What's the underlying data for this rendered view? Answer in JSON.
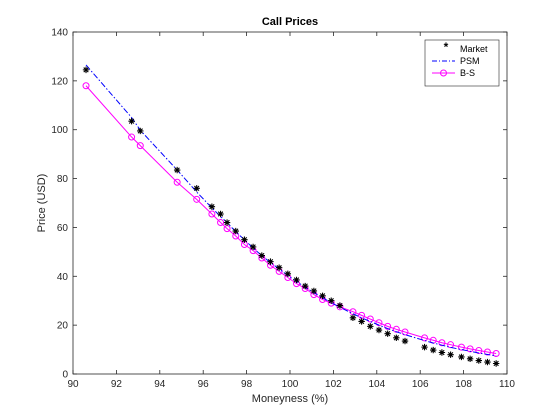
{
  "chart_data": {
    "type": "line",
    "title": "Call Prices",
    "xlabel": "Moneyness (%)",
    "ylabel": "Price (USD)",
    "xlim": [
      90,
      110
    ],
    "ylim": [
      0,
      140
    ],
    "xticks": [
      90,
      92,
      94,
      96,
      98,
      100,
      102,
      104,
      106,
      108,
      110
    ],
    "yticks": [
      0,
      20,
      40,
      60,
      80,
      100,
      120,
      140
    ],
    "grid": false,
    "legend_position": "top-right",
    "colors": {
      "market": "#000000",
      "psm": "#0000ff",
      "bs": "#ff00ff"
    },
    "series": [
      {
        "name": "Market",
        "style": "asterisk-markers",
        "x": [
          90.6,
          92.7,
          93.1,
          94.8,
          95.7,
          96.4,
          96.8,
          97.1,
          97.5,
          97.9,
          98.3,
          98.7,
          99.1,
          99.5,
          99.9,
          100.3,
          100.7,
          101.1,
          101.5,
          101.9,
          102.3,
          102.9,
          103.3,
          103.7,
          104.1,
          104.5,
          104.9,
          105.3,
          106.2,
          106.6,
          107.0,
          107.4,
          107.9,
          108.3,
          108.7,
          109.1,
          109.5
        ],
        "y": [
          124.5,
          103.5,
          99.5,
          83.5,
          76.0,
          68.5,
          65.5,
          62.0,
          58.5,
          55.0,
          52.0,
          48.5,
          46.0,
          43.5,
          41.0,
          38.5,
          36.0,
          34.0,
          32.0,
          30.0,
          28.0,
          23.0,
          21.5,
          19.5,
          18.0,
          16.5,
          14.8,
          13.5,
          11.0,
          9.8,
          8.8,
          7.9,
          7.0,
          6.2,
          5.5,
          4.9,
          4.3
        ]
      },
      {
        "name": "PSM",
        "style": "dash-dot",
        "x": [
          90.6,
          92.7,
          93.1,
          94.8,
          95.7,
          96.4,
          96.8,
          97.1,
          97.5,
          97.9,
          98.3,
          98.7,
          99.1,
          99.5,
          99.9,
          100.3,
          100.7,
          101.1,
          101.5,
          101.9,
          102.3,
          102.9,
          103.3,
          103.7,
          104.1,
          104.5,
          104.9,
          105.3,
          106.2,
          106.6,
          107.0,
          107.4,
          107.9,
          108.3,
          108.7,
          109.1,
          109.5
        ],
        "y": [
          126.5,
          105.0,
          99.8,
          83.5,
          74.5,
          68.0,
          64.5,
          62.0,
          58.2,
          55.0,
          51.5,
          48.5,
          45.6,
          43.0,
          40.3,
          37.9,
          35.5,
          33.3,
          31.2,
          29.2,
          27.3,
          24.7,
          23.0,
          21.5,
          20.0,
          18.6,
          17.3,
          16.1,
          13.7,
          12.7,
          11.8,
          10.9,
          10.0,
          9.3,
          8.6,
          8.0,
          7.4
        ]
      },
      {
        "name": "B-S",
        "style": "line-circle-markers",
        "x": [
          90.6,
          92.7,
          93.1,
          94.8,
          95.7,
          96.4,
          96.8,
          97.1,
          97.5,
          97.9,
          98.3,
          98.7,
          99.1,
          99.5,
          99.9,
          100.3,
          100.7,
          101.1,
          101.5,
          101.9,
          102.3,
          102.9,
          103.3,
          103.7,
          104.1,
          104.5,
          104.9,
          105.3,
          106.2,
          106.6,
          107.0,
          107.4,
          107.9,
          108.3,
          108.7,
          109.1,
          109.5
        ],
        "y": [
          118.0,
          97.0,
          93.5,
          78.5,
          71.5,
          65.5,
          62.0,
          59.5,
          56.5,
          53.0,
          50.5,
          47.5,
          44.5,
          42.0,
          39.5,
          37.0,
          35.0,
          32.5,
          30.5,
          29.0,
          27.5,
          25.5,
          24.0,
          22.5,
          21.0,
          19.5,
          18.3,
          17.2,
          14.8,
          13.8,
          12.8,
          12.0,
          11.0,
          10.3,
          9.6,
          9.0,
          8.4
        ]
      }
    ]
  }
}
